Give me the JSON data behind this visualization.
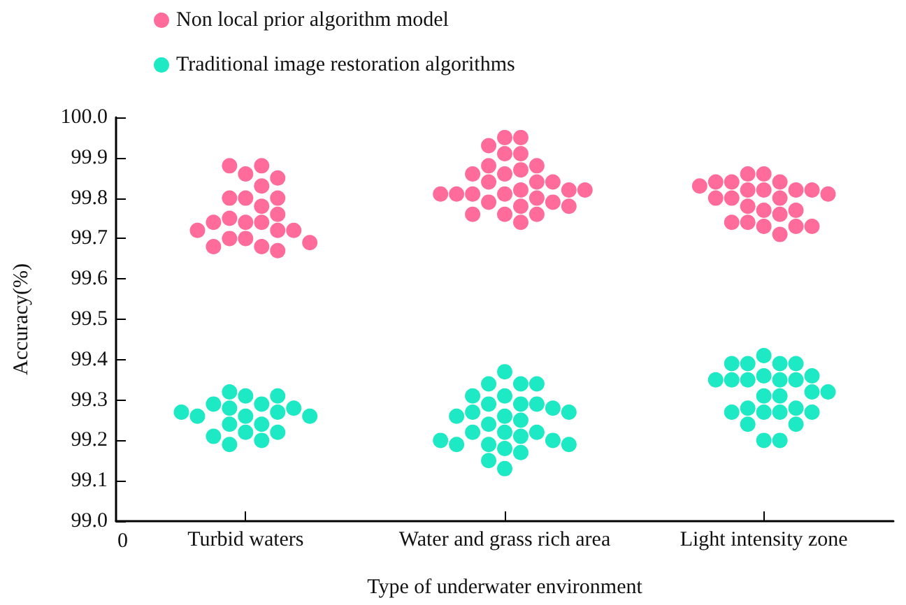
{
  "chart_data": {
    "type": "scatter",
    "xlabel": "Type of underwater environment",
    "ylabel": "Accuracy(%)",
    "categories": [
      "Turbid waters",
      "Water and grass rich area",
      "Light intensity zone"
    ],
    "annotations": [
      "0"
    ],
    "ylim": [
      99,
      100
    ],
    "yticks": [
      {
        "value": 99,
        "label": "99.0"
      },
      {
        "value": 99.1,
        "label": "99.1"
      },
      {
        "value": 99.2,
        "label": "99.2"
      },
      {
        "value": 99.3,
        "label": "99.3"
      },
      {
        "value": 99.4,
        "label": "99.4"
      },
      {
        "value": 99.5,
        "label": "99.5"
      },
      {
        "value": 99.6,
        "label": "99.6"
      },
      {
        "value": 99.7,
        "label": "99.7"
      },
      {
        "value": 99.8,
        "label": "99.8"
      },
      {
        "value": 99.9,
        "label": "99.9"
      },
      {
        "value": 100,
        "label": "100.0"
      }
    ],
    "grid": false,
    "legend": "top left",
    "marker": "circle",
    "series": [
      {
        "name": "Non local prior algorithm model",
        "color": "#ff6b9a",
        "x": [
          "Turbid waters",
          "Turbid waters",
          "Turbid waters",
          "Turbid waters",
          "Turbid waters",
          "Turbid waters",
          "Turbid waters",
          "Turbid waters",
          "Turbid waters",
          "Turbid waters",
          "Turbid waters",
          "Turbid waters",
          "Turbid waters",
          "Turbid waters",
          "Turbid waters",
          "Turbid waters",
          "Turbid waters",
          "Turbid waters",
          "Turbid waters",
          "Turbid waters",
          "Turbid waters",
          "Turbid waters",
          "Turbid waters",
          "Water and grass rich area",
          "Water and grass rich area",
          "Water and grass rich area",
          "Water and grass rich area",
          "Water and grass rich area",
          "Water and grass rich area",
          "Water and grass rich area",
          "Water and grass rich area",
          "Water and grass rich area",
          "Water and grass rich area",
          "Water and grass rich area",
          "Water and grass rich area",
          "Water and grass rich area",
          "Water and grass rich area",
          "Water and grass rich area",
          "Water and grass rich area",
          "Water and grass rich area",
          "Water and grass rich area",
          "Water and grass rich area",
          "Water and grass rich area",
          "Water and grass rich area",
          "Water and grass rich area",
          "Water and grass rich area",
          "Water and grass rich area",
          "Water and grass rich area",
          "Water and grass rich area",
          "Water and grass rich area",
          "Water and grass rich area",
          "Water and grass rich area",
          "Light intensity zone",
          "Light intensity zone",
          "Light intensity zone",
          "Light intensity zone",
          "Light intensity zone",
          "Light intensity zone",
          "Light intensity zone",
          "Light intensity zone",
          "Light intensity zone",
          "Light intensity zone",
          "Light intensity zone",
          "Light intensity zone",
          "Light intensity zone",
          "Light intensity zone",
          "Light intensity zone",
          "Light intensity zone",
          "Light intensity zone",
          "Light intensity zone",
          "Light intensity zone",
          "Light intensity zone",
          "Light intensity zone",
          "Light intensity zone",
          "Light intensity zone",
          "Light intensity zone"
        ],
        "values": [
          99.86,
          99.88,
          99.88,
          99.85,
          99.83,
          99.8,
          99.8,
          99.8,
          99.78,
          99.74,
          99.75,
          99.76,
          99.74,
          99.72,
          99.74,
          99.72,
          99.72,
          99.7,
          99.68,
          99.7,
          99.67,
          99.68,
          99.69,
          99.95,
          99.95,
          99.93,
          99.91,
          99.91,
          99.86,
          99.88,
          99.88,
          99.87,
          99.84,
          99.86,
          99.84,
          99.84,
          99.81,
          99.82,
          99.79,
          99.81,
          99.81,
          99.82,
          99.8,
          99.81,
          99.82,
          99.76,
          99.78,
          99.79,
          99.76,
          99.78,
          99.74,
          99.76,
          99.86,
          99.82,
          99.84,
          99.8,
          99.82,
          99.86,
          99.82,
          99.84,
          99.8,
          99.82,
          99.84,
          99.81,
          99.83,
          99.8,
          99.77,
          99.78,
          99.77,
          99.76,
          99.74,
          99.73,
          99.74,
          99.73,
          99.73,
          99.71
        ]
      },
      {
        "name": "Traditional image restoration algorithms",
        "color": "#1de9c4",
        "x": [
          "Turbid waters",
          "Turbid waters",
          "Turbid waters",
          "Turbid waters",
          "Turbid waters",
          "Turbid waters",
          "Turbid waters",
          "Turbid waters",
          "Turbid waters",
          "Turbid waters",
          "Turbid waters",
          "Turbid waters",
          "Turbid waters",
          "Turbid waters",
          "Turbid waters",
          "Turbid waters",
          "Turbid waters",
          "Turbid waters",
          "Turbid waters",
          "Water and grass rich area",
          "Water and grass rich area",
          "Water and grass rich area",
          "Water and grass rich area",
          "Water and grass rich area",
          "Water and grass rich area",
          "Water and grass rich area",
          "Water and grass rich area",
          "Water and grass rich area",
          "Water and grass rich area",
          "Water and grass rich area",
          "Water and grass rich area",
          "Water and grass rich area",
          "Water and grass rich area",
          "Water and grass rich area",
          "Water and grass rich area",
          "Water and grass rich area",
          "Water and grass rich area",
          "Water and grass rich area",
          "Water and grass rich area",
          "Water and grass rich area",
          "Water and grass rich area",
          "Water and grass rich area",
          "Water and grass rich area",
          "Water and grass rich area",
          "Water and grass rich area",
          "Water and grass rich area",
          "Water and grass rich area",
          "Water and grass rich area",
          "Light intensity zone",
          "Light intensity zone",
          "Light intensity zone",
          "Light intensity zone",
          "Light intensity zone",
          "Light intensity zone",
          "Light intensity zone",
          "Light intensity zone",
          "Light intensity zone",
          "Light intensity zone",
          "Light intensity zone",
          "Light intensity zone",
          "Light intensity zone",
          "Light intensity zone",
          "Light intensity zone",
          "Light intensity zone",
          "Light intensity zone",
          "Light intensity zone",
          "Light intensity zone",
          "Light intensity zone",
          "Light intensity zone",
          "Light intensity zone",
          "Light intensity zone",
          "Light intensity zone",
          "Light intensity zone",
          "Light intensity zone"
        ],
        "values": [
          99.31,
          99.29,
          99.32,
          99.31,
          99.29,
          99.28,
          99.26,
          99.27,
          99.28,
          99.26,
          99.26,
          99.27,
          99.24,
          99.24,
          99.22,
          99.22,
          99.2,
          99.21,
          99.19,
          99.37,
          99.34,
          99.34,
          99.34,
          99.31,
          99.29,
          99.29,
          99.31,
          99.29,
          99.28,
          99.26,
          99.25,
          99.27,
          99.26,
          99.27,
          99.24,
          99.22,
          99.22,
          99.22,
          99.21,
          99.19,
          99.2,
          99.19,
          99.19,
          99.2,
          99.18,
          99.17,
          99.15,
          99.13,
          99.41,
          99.39,
          99.39,
          99.39,
          99.39,
          99.36,
          99.35,
          99.35,
          99.36,
          99.35,
          99.35,
          99.35,
          99.31,
          99.32,
          99.32,
          99.31,
          99.27,
          99.28,
          99.28,
          99.27,
          99.27,
          99.27,
          99.24,
          99.24,
          99.2,
          99.2
        ]
      }
    ]
  }
}
